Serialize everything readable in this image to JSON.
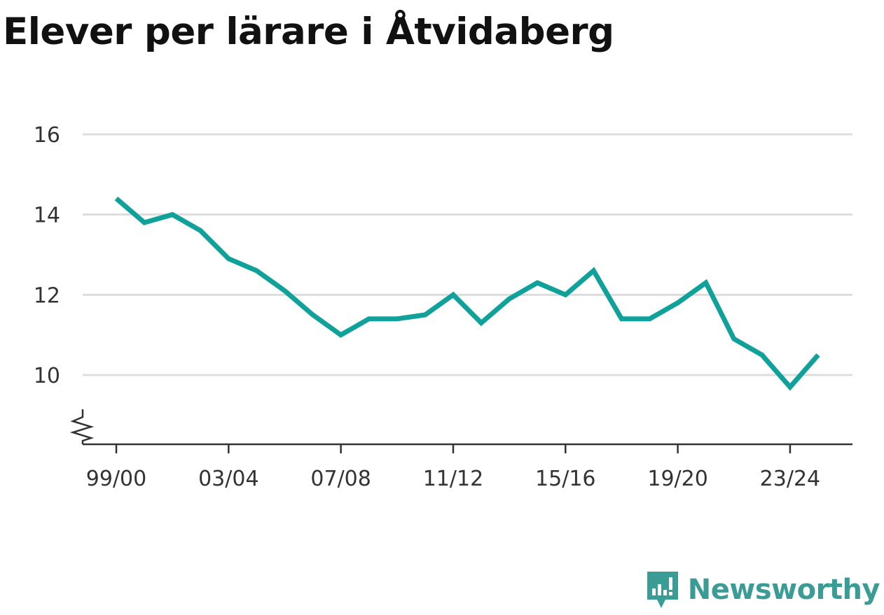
{
  "header": {
    "title": "Elever per lärare i Åtvidaberg"
  },
  "brand": {
    "name": "Newsworthy",
    "icon": "newsworthy-logo-icon",
    "color": "#3a9c94"
  },
  "colors": {
    "line": "#0fa19a",
    "grid": "#dddddd",
    "axis": "#333333",
    "text": "#333333"
  },
  "chart_data": {
    "type": "line",
    "title": "Elever per lärare i Åtvidaberg",
    "xlabel": "",
    "ylabel": "",
    "x": [
      "99/00",
      "00/01",
      "01/02",
      "02/03",
      "03/04",
      "04/05",
      "05/06",
      "06/07",
      "07/08",
      "08/09",
      "09/10",
      "10/11",
      "11/12",
      "12/13",
      "13/14",
      "14/15",
      "15/16",
      "16/17",
      "17/18",
      "18/19",
      "19/20",
      "20/21",
      "21/22",
      "22/23",
      "23/24",
      "24/25"
    ],
    "series": [
      {
        "values": [
          14.4,
          13.8,
          14.0,
          13.6,
          12.9,
          12.6,
          12.1,
          11.5,
          11.0,
          11.4,
          11.4,
          11.5,
          12.0,
          11.3,
          11.9,
          12.3,
          12.0,
          12.6,
          11.4,
          11.4,
          11.8,
          12.3,
          10.9,
          10.5,
          9.7,
          10.5
        ]
      }
    ],
    "ylim": [
      8.3,
      16
    ],
    "y_ticks": [
      10,
      12,
      14,
      16
    ],
    "x_tick_labels": [
      "99/00",
      "03/04",
      "07/08",
      "11/12",
      "15/16",
      "19/20",
      "23/24"
    ],
    "y_axis_break": true,
    "grid": "horizontal",
    "legend": "none"
  }
}
